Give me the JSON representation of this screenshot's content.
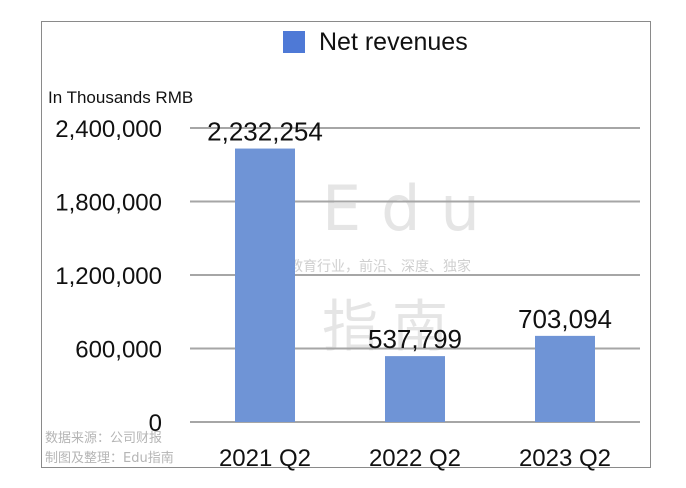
{
  "legend": {
    "label": "Net revenues",
    "color": "#4e79d6"
  },
  "unit_label": "In Thousands RMB",
  "source": {
    "line1": "数据来源：公司财报",
    "line2": "制图及整理：Edu指南"
  },
  "watermark": {
    "brand": "Edu",
    "tagline": "教育行业，前沿、深度、独家",
    "brand_cn": "指南"
  },
  "chart_data": {
    "type": "bar",
    "title": "",
    "xlabel": "",
    "ylabel": "In Thousands RMB",
    "categories": [
      "2021 Q2",
      "2022 Q2",
      "2023 Q2"
    ],
    "series": [
      {
        "name": "Net revenues",
        "values": [
          2232254,
          537799,
          703094
        ],
        "color": "#6f94d6"
      }
    ],
    "data_labels": [
      "2,232,254",
      "537,799",
      "703,094"
    ],
    "ylim": [
      0,
      2400000
    ],
    "yticks": [
      0,
      600000,
      1200000,
      1800000,
      2400000
    ],
    "ytick_labels": [
      "0",
      "600,000",
      "1,200,000",
      "1,800,000",
      "2,400,000"
    ],
    "grid": true,
    "legend_position": "top"
  }
}
